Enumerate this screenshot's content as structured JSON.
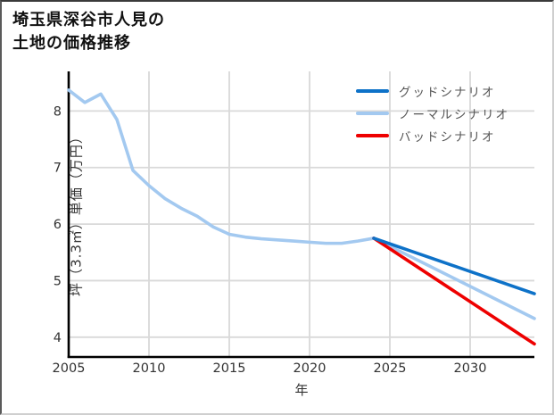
{
  "title": {
    "line1": "埼玉県深谷市人見の",
    "line2": "土地の価格推移"
  },
  "chart_data": {
    "type": "line",
    "title": "埼玉県深谷市人見の土地の価格推移",
    "xlabel": "年",
    "ylabel": "坪（3.3㎡）単価（万円）",
    "xlim": [
      2005,
      2034
    ],
    "ylim": [
      3.65,
      8.7
    ],
    "x_ticks": [
      2005,
      2010,
      2015,
      2020,
      2025,
      2030
    ],
    "y_ticks": [
      4,
      5,
      6,
      7,
      8
    ],
    "grid": true,
    "legend_position": "upper right",
    "colors": {
      "grid": "#d9d9d9",
      "axis": "#000000",
      "tick_label": "#333333",
      "legend_text": "#555555"
    },
    "series": [
      {
        "name": "グッドシナリオ",
        "color": "#0e72c8",
        "x": [
          2024,
          2034
        ],
        "y": [
          5.75,
          4.77
        ]
      },
      {
        "name": "ノーマルシナリオ",
        "color": "#a3c9f0",
        "x": [
          2005,
          2006,
          2007,
          2008,
          2009,
          2010,
          2011,
          2012,
          2013,
          2014,
          2015,
          2016,
          2017,
          2018,
          2019,
          2020,
          2021,
          2022,
          2023,
          2024,
          2034
        ],
        "y": [
          8.37,
          8.15,
          8.3,
          7.85,
          6.95,
          6.68,
          6.45,
          6.28,
          6.14,
          5.95,
          5.82,
          5.77,
          5.74,
          5.72,
          5.7,
          5.68,
          5.66,
          5.66,
          5.7,
          5.75,
          4.33
        ]
      },
      {
        "name": "バッドシナリオ",
        "color": "#ee0000",
        "x": [
          2024,
          2034
        ],
        "y": [
          5.75,
          3.88
        ]
      }
    ]
  }
}
